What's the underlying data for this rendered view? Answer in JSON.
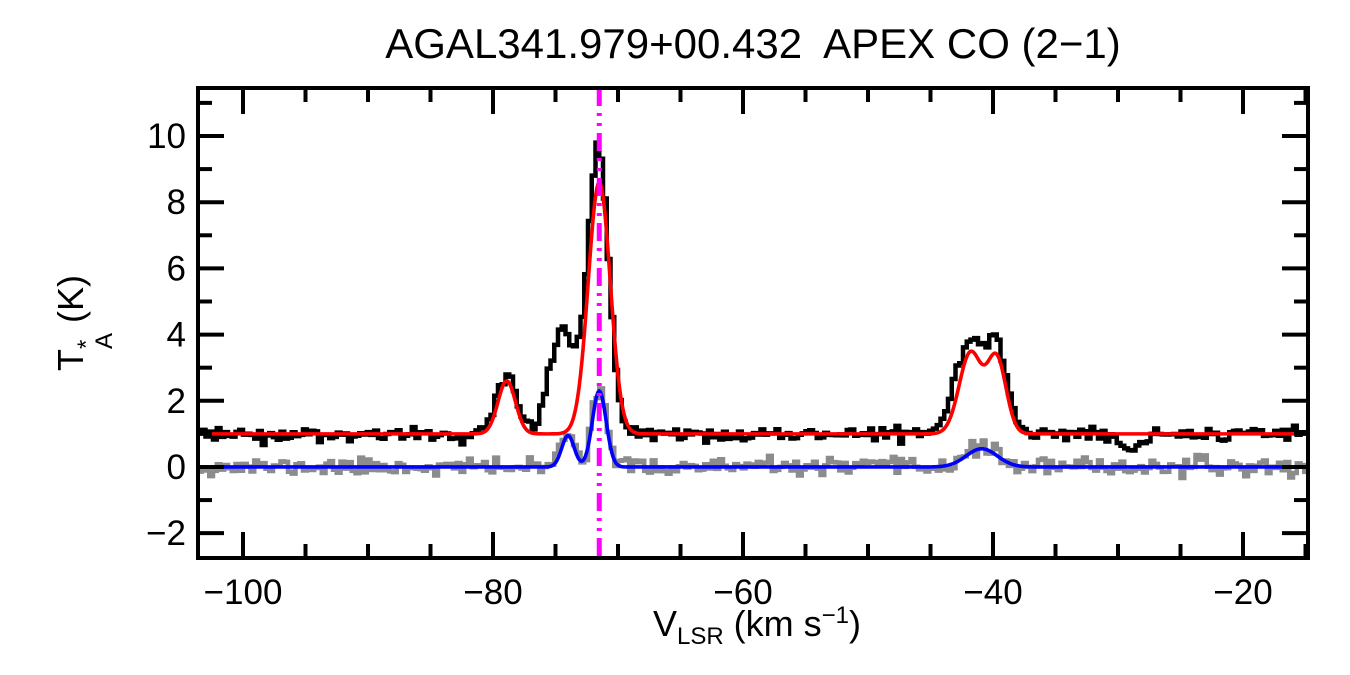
{
  "chart_data": {
    "type": "line",
    "title": "AGAL341.979+00.432  APEX CO (2−1)",
    "xlabel": "V_LSR (km s−1)",
    "ylabel": "T_A* (K)",
    "xlabel_parts": {
      "base": "V",
      "sub": "LSR",
      "mid": " (km s",
      "sup": "−1",
      "end": ")"
    },
    "ylabel_parts": {
      "base": "T",
      "sup": "*",
      "sub": "A",
      "end": " (K)"
    },
    "xlim": [
      -103.6,
      -14.8
    ],
    "ylim": [
      -2.75,
      11.45
    ],
    "grid": false,
    "legend": "none",
    "x_axis": {
      "major_ticks": [
        -100,
        -80,
        -60,
        -40,
        -20
      ],
      "major_tick_labels": [
        "−100",
        "−80",
        "−60",
        "−40",
        "−20"
      ],
      "minor_step": 5
    },
    "y_axis": {
      "major_ticks": [
        -2,
        0,
        2,
        4,
        6,
        8,
        10
      ],
      "major_tick_labels": [
        "−2",
        "0",
        "2",
        "4",
        "6",
        "8",
        "10"
      ],
      "minor_step": 1
    },
    "channel_width_kms": 0.3,
    "series": [
      {
        "name": "offset-spectrum-histogram",
        "style": "histogram",
        "color": "#8c8c8c",
        "line_width": 4.5,
        "baseline": 0.0,
        "noise_rms": 0.125,
        "seed": 11,
        "gaussians": [
          {
            "center": -74.0,
            "amp": 1.05,
            "sigma": 0.55
          },
          {
            "center": -71.5,
            "amp": 2.45,
            "sigma": 0.6
          },
          {
            "center": -40.9,
            "amp": 0.6,
            "sigma": 1.3
          }
        ]
      },
      {
        "name": "observed-spectrum-histogram",
        "style": "histogram",
        "color": "#000000",
        "line_width": 4.5,
        "baseline": 1.0,
        "noise_rms": 0.11,
        "seed": 3,
        "gaussians": [
          {
            "center": -78.9,
            "amp": 1.9,
            "sigma": 0.75
          },
          {
            "center": -74.4,
            "amp": 3.15,
            "sigma": 1.05
          },
          {
            "center": -71.55,
            "amp": 8.6,
            "sigma": 0.82
          },
          {
            "center": -41.9,
            "amp": 2.75,
            "sigma": 1.15
          },
          {
            "center": -39.6,
            "amp": 2.45,
            "sigma": 0.85
          },
          {
            "center": -28.9,
            "amp": -0.55,
            "sigma": 0.8
          }
        ]
      },
      {
        "name": "offset-gaussian-fit",
        "style": "curve",
        "color": "#0000ff",
        "line_width": 3.6,
        "baseline": 0.0,
        "noise_rms": 0,
        "seed": 0,
        "gaussians": [
          {
            "center": -74.0,
            "amp": 0.95,
            "sigma": 0.5
          },
          {
            "center": -71.5,
            "amp": 2.3,
            "sigma": 0.55
          },
          {
            "center": -40.9,
            "amp": 0.55,
            "sigma": 1.25
          }
        ]
      },
      {
        "name": "observed-gaussian-fit",
        "style": "curve",
        "color": "#ff0000",
        "line_width": 3.6,
        "baseline": 1.0,
        "noise_rms": 0,
        "seed": 0,
        "gaussians": [
          {
            "center": -78.9,
            "amp": 1.6,
            "sigma": 0.7
          },
          {
            "center": -71.5,
            "amp": 7.6,
            "sigma": 0.88
          },
          {
            "center": -41.8,
            "amp": 2.45,
            "sigma": 0.9
          },
          {
            "center": -39.7,
            "amp": 2.25,
            "sigma": 0.75
          }
        ]
      }
    ],
    "vline": {
      "x": -71.5,
      "color": "#ff00ff",
      "style": "dash-dot-dot",
      "width": 5
    },
    "frame_color": "#000000",
    "background": "#ffffff"
  }
}
